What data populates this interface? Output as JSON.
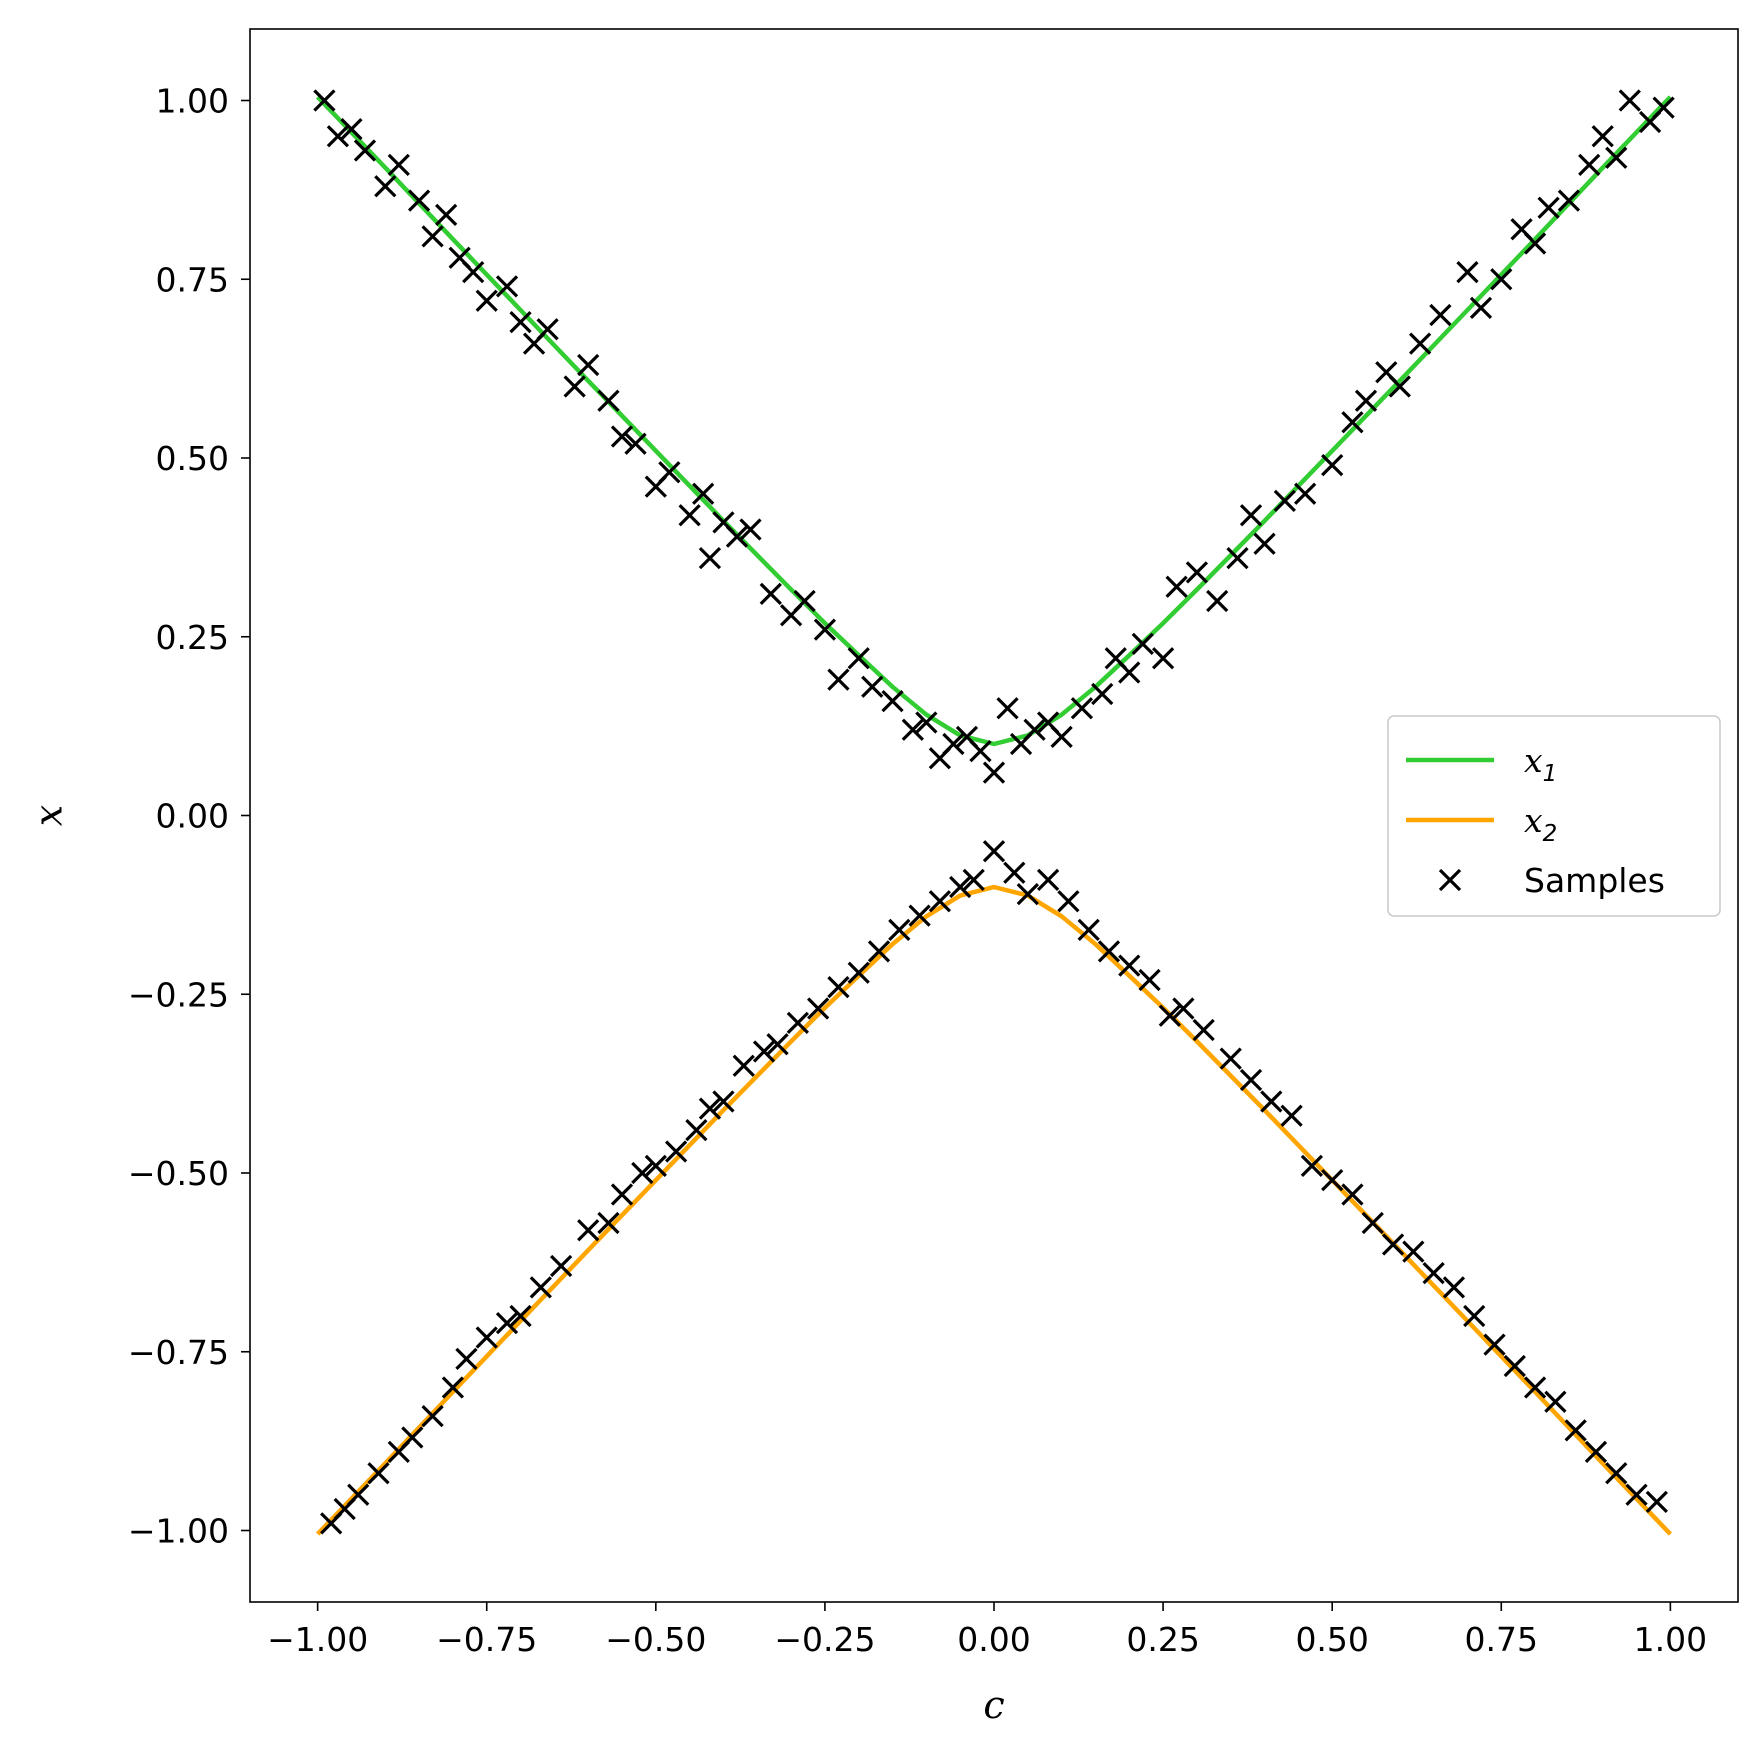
{
  "chart_data": {
    "type": "scatter",
    "xlabel": "c",
    "ylabel": "x",
    "xlim": [
      -1.1,
      1.1
    ],
    "ylim": [
      -1.1,
      1.1
    ],
    "xticks": [
      -1.0,
      -0.75,
      -0.5,
      -0.25,
      0.0,
      0.25,
      0.5,
      0.75,
      1.0
    ],
    "yticks": [
      -1.0,
      -0.75,
      -0.5,
      -0.25,
      0.0,
      0.25,
      0.5,
      0.75,
      1.0
    ],
    "xtick_labels": [
      "−1.00",
      "−0.75",
      "−0.50",
      "−0.25",
      "0.00",
      "0.25",
      "0.50",
      "0.75",
      "1.00"
    ],
    "ytick_labels": [
      "−1.00",
      "−0.75",
      "−0.50",
      "−0.25",
      "0.00",
      "0.25",
      "0.50",
      "0.75",
      "1.00"
    ],
    "grid": false,
    "legend_position": "center-right",
    "series": [
      {
        "name": "x1",
        "legend_label": "x",
        "legend_subscript": "1",
        "kind": "line",
        "color": "#32cd32",
        "x": [
          -1.0,
          -0.9,
          -0.8,
          -0.7,
          -0.6,
          -0.5,
          -0.4,
          -0.3,
          -0.25,
          -0.2,
          -0.15,
          -0.1,
          -0.05,
          0.0,
          0.05,
          0.1,
          0.15,
          0.2,
          0.25,
          0.3,
          0.4,
          0.5,
          0.6,
          0.7,
          0.8,
          0.9,
          1.0
        ],
        "y": [
          1.005,
          0.906,
          0.806,
          0.707,
          0.608,
          0.51,
          0.412,
          0.316,
          0.269,
          0.224,
          0.18,
          0.141,
          0.112,
          0.1,
          0.112,
          0.141,
          0.18,
          0.224,
          0.269,
          0.316,
          0.412,
          0.51,
          0.608,
          0.707,
          0.806,
          0.906,
          1.005
        ]
      },
      {
        "name": "x2",
        "legend_label": "x",
        "legend_subscript": "2",
        "kind": "line",
        "color": "#ffa500",
        "x": [
          -1.0,
          -0.9,
          -0.8,
          -0.7,
          -0.6,
          -0.5,
          -0.4,
          -0.3,
          -0.25,
          -0.2,
          -0.15,
          -0.1,
          -0.05,
          0.0,
          0.05,
          0.1,
          0.15,
          0.2,
          0.25,
          0.3,
          0.4,
          0.5,
          0.6,
          0.7,
          0.8,
          0.9,
          1.0
        ],
        "y": [
          -1.005,
          -0.906,
          -0.806,
          -0.707,
          -0.608,
          -0.51,
          -0.412,
          -0.316,
          -0.269,
          -0.224,
          -0.18,
          -0.141,
          -0.112,
          -0.1,
          -0.112,
          -0.141,
          -0.18,
          -0.224,
          -0.269,
          -0.316,
          -0.412,
          -0.51,
          -0.608,
          -0.707,
          -0.806,
          -0.906,
          -1.005
        ]
      },
      {
        "name": "Samples",
        "legend_label": "Samples",
        "kind": "scatter",
        "marker": "x",
        "color": "#000000",
        "x": [
          -0.99,
          -0.97,
          -0.95,
          -0.93,
          -0.9,
          -0.88,
          -0.85,
          -0.83,
          -0.81,
          -0.79,
          -0.77,
          -0.75,
          -0.72,
          -0.7,
          -0.68,
          -0.66,
          -0.62,
          -0.6,
          -0.57,
          -0.55,
          -0.53,
          -0.5,
          -0.48,
          -0.45,
          -0.43,
          -0.42,
          -0.4,
          -0.38,
          -0.36,
          -0.33,
          -0.3,
          -0.28,
          -0.25,
          -0.23,
          -0.2,
          -0.18,
          -0.15,
          -0.12,
          -0.1,
          -0.08,
          -0.06,
          -0.04,
          -0.02,
          0.0,
          0.02,
          0.04,
          0.06,
          0.08,
          0.1,
          0.13,
          0.16,
          0.18,
          0.2,
          0.22,
          0.25,
          0.27,
          0.3,
          0.33,
          0.36,
          0.38,
          0.4,
          0.43,
          0.46,
          0.5,
          0.53,
          0.55,
          0.58,
          0.6,
          0.63,
          0.66,
          0.7,
          0.72,
          0.75,
          0.78,
          0.8,
          0.82,
          0.85,
          0.88,
          0.9,
          0.92,
          0.94,
          0.97,
          0.99,
          -0.98,
          -0.96,
          -0.94,
          -0.91,
          -0.88,
          -0.86,
          -0.83,
          -0.8,
          -0.78,
          -0.75,
          -0.72,
          -0.7,
          -0.67,
          -0.64,
          -0.6,
          -0.57,
          -0.55,
          -0.52,
          -0.5,
          -0.47,
          -0.44,
          -0.42,
          -0.4,
          -0.37,
          -0.34,
          -0.32,
          -0.29,
          -0.26,
          -0.23,
          -0.2,
          -0.17,
          -0.14,
          -0.11,
          -0.08,
          -0.05,
          -0.03,
          0.0,
          0.03,
          0.05,
          0.08,
          0.11,
          0.14,
          0.17,
          0.2,
          0.23,
          0.26,
          0.28,
          0.31,
          0.35,
          0.38,
          0.41,
          0.44,
          0.47,
          0.5,
          0.53,
          0.56,
          0.59,
          0.62,
          0.65,
          0.68,
          0.71,
          0.74,
          0.77,
          0.8,
          0.83,
          0.86,
          0.89,
          0.92,
          0.95,
          0.98
        ],
        "y": [
          1.0,
          0.95,
          0.96,
          0.93,
          0.88,
          0.91,
          0.86,
          0.81,
          0.84,
          0.78,
          0.76,
          0.72,
          0.74,
          0.69,
          0.66,
          0.68,
          0.6,
          0.63,
          0.58,
          0.53,
          0.52,
          0.46,
          0.48,
          0.42,
          0.45,
          0.36,
          0.41,
          0.39,
          0.4,
          0.31,
          0.28,
          0.3,
          0.26,
          0.19,
          0.22,
          0.18,
          0.16,
          0.12,
          0.13,
          0.08,
          0.1,
          0.11,
          0.09,
          0.06,
          0.15,
          0.1,
          0.12,
          0.13,
          0.11,
          0.15,
          0.17,
          0.22,
          0.2,
          0.24,
          0.22,
          0.32,
          0.34,
          0.3,
          0.36,
          0.42,
          0.38,
          0.44,
          0.45,
          0.49,
          0.55,
          0.58,
          0.62,
          0.6,
          0.66,
          0.7,
          0.76,
          0.71,
          0.75,
          0.82,
          0.8,
          0.85,
          0.86,
          0.91,
          0.95,
          0.92,
          1.0,
          0.97,
          0.99,
          -0.99,
          -0.97,
          -0.95,
          -0.92,
          -0.89,
          -0.87,
          -0.84,
          -0.8,
          -0.76,
          -0.73,
          -0.71,
          -0.7,
          -0.66,
          -0.63,
          -0.58,
          -0.57,
          -0.53,
          -0.5,
          -0.49,
          -0.47,
          -0.44,
          -0.41,
          -0.4,
          -0.35,
          -0.33,
          -0.32,
          -0.29,
          -0.27,
          -0.24,
          -0.22,
          -0.19,
          -0.16,
          -0.14,
          -0.12,
          -0.1,
          -0.09,
          -0.05,
          -0.08,
          -0.11,
          -0.09,
          -0.12,
          -0.16,
          -0.19,
          -0.21,
          -0.23,
          -0.28,
          -0.27,
          -0.3,
          -0.34,
          -0.37,
          -0.4,
          -0.42,
          -0.49,
          -0.51,
          -0.53,
          -0.57,
          -0.6,
          -0.61,
          -0.64,
          -0.66,
          -0.7,
          -0.74,
          -0.77,
          -0.8,
          -0.82,
          -0.86,
          -0.89,
          -0.92,
          -0.95,
          -0.96
        ]
      }
    ]
  }
}
